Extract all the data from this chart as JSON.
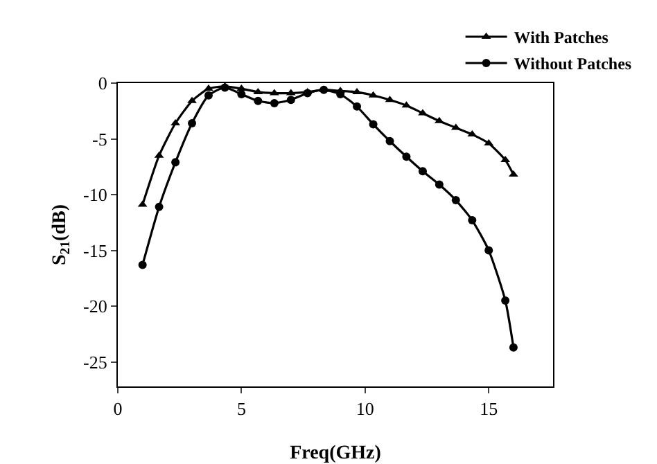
{
  "chart_data": {
    "type": "line",
    "xlabel": "Freq(GHz)",
    "ylabel": "S$_{21}$(dB)",
    "x": [
      1,
      1.67,
      2.33,
      3,
      3.67,
      4.33,
      5,
      5.67,
      6.33,
      7,
      7.67,
      8.33,
      9,
      9.67,
      10.33,
      11,
      11.67,
      12.33,
      13,
      13.67,
      14.33,
      15,
      15.67,
      16
    ],
    "series": [
      {
        "name": "With Patches",
        "color": "#000000",
        "marker": "triangle",
        "values": [
          -10.9,
          -6.5,
          -3.6,
          -1.6,
          -0.5,
          -0.3,
          -0.5,
          -0.8,
          -0.9,
          -0.9,
          -0.8,
          -0.6,
          -0.7,
          -0.8,
          -1.1,
          -1.5,
          -2.0,
          -2.7,
          -3.4,
          -4.0,
          -4.6,
          -5.4,
          -6.9,
          -8.2
        ]
      },
      {
        "name": "Without Patches",
        "color": "#000000",
        "marker": "circle",
        "values": [
          -16.3,
          -11.1,
          -7.1,
          -3.6,
          -1.1,
          -0.4,
          -1.0,
          -1.6,
          -1.8,
          -1.5,
          -0.9,
          -0.6,
          -1.0,
          -2.1,
          -3.7,
          -5.2,
          -6.6,
          -7.9,
          -9.1,
          -10.5,
          -12.3,
          -15.0,
          -19.5,
          -23.7
        ]
      }
    ],
    "xlim": [
      0,
      17.6
    ],
    "xticks": [
      0,
      5,
      10,
      15
    ],
    "ylim": [
      -27.2,
      0
    ],
    "yticks": [
      -25,
      -20,
      -15,
      -10,
      -5,
      0
    ],
    "grid": false,
    "legend": "top right",
    "line_style": "solid"
  }
}
